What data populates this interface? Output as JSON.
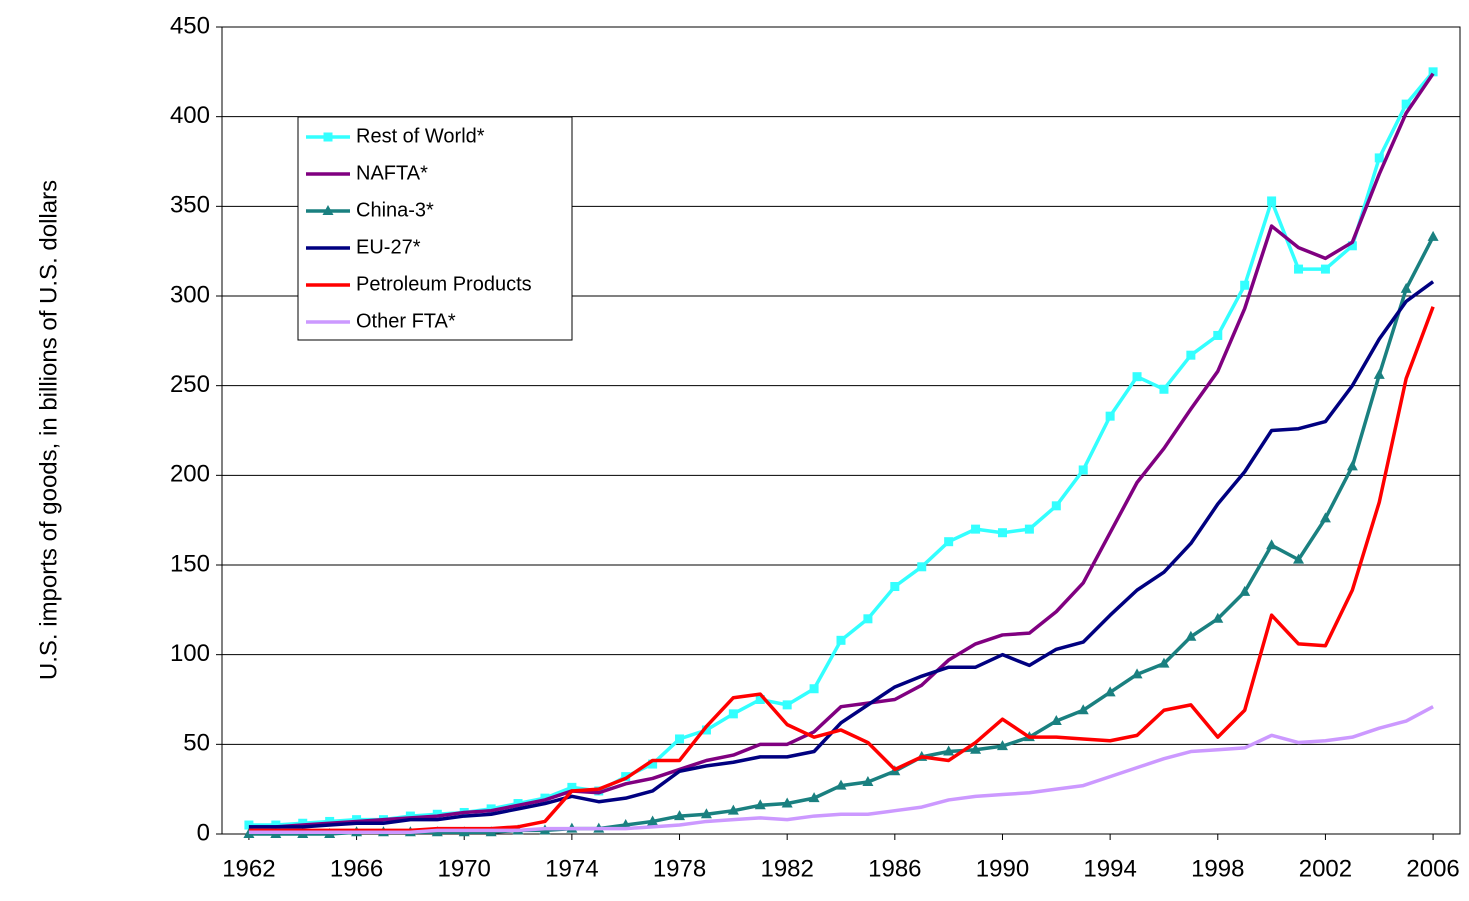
{
  "chart_data": {
    "type": "line",
    "y_label": "U.S. imports of goods, in billions of U.S. dollars",
    "x": [
      1962,
      1963,
      1964,
      1965,
      1966,
      1967,
      1968,
      1969,
      1970,
      1971,
      1972,
      1973,
      1974,
      1975,
      1976,
      1977,
      1978,
      1979,
      1980,
      1981,
      1982,
      1983,
      1984,
      1985,
      1986,
      1987,
      1988,
      1989,
      1990,
      1991,
      1992,
      1993,
      1994,
      1995,
      1996,
      1997,
      1998,
      1999,
      2000,
      2001,
      2002,
      2003,
      2004,
      2005,
      2006
    ],
    "series": [
      {
        "name": "Rest of World*",
        "color": "#33ffff",
        "marker": "square",
        "values": [
          5,
          5,
          6,
          7,
          8,
          8,
          10,
          11,
          12,
          14,
          17,
          20,
          26,
          24,
          32,
          39,
          53,
          58,
          67,
          75,
          72,
          81,
          108,
          120,
          138,
          149,
          163,
          170,
          168,
          170,
          183,
          203,
          233,
          255,
          248,
          267,
          278,
          306,
          353,
          315,
          315,
          328,
          377,
          407,
          425
        ]
      },
      {
        "name": "NAFTA*",
        "color": "#800080",
        "values": [
          4,
          4,
          5,
          6,
          7,
          8,
          9,
          10,
          12,
          13,
          16,
          19,
          24,
          23,
          28,
          31,
          36,
          41,
          44,
          50,
          50,
          57,
          71,
          73,
          75,
          83,
          97,
          106,
          111,
          112,
          124,
          140,
          168,
          196,
          215,
          237,
          258,
          293,
          339,
          327,
          321,
          330,
          368,
          402,
          424
        ]
      },
      {
        "name": "China-3*",
        "color": "#1a8080",
        "marker": "triangle",
        "values": [
          0,
          0,
          0,
          0,
          1,
          1,
          1,
          1,
          1,
          1,
          2,
          2,
          3,
          3,
          5,
          7,
          10,
          11,
          13,
          16,
          17,
          20,
          27,
          29,
          35,
          43,
          46,
          47,
          49,
          54,
          63,
          69,
          79,
          89,
          95,
          110,
          120,
          135,
          161,
          153,
          176,
          205,
          256,
          304,
          333
        ]
      },
      {
        "name": "EU-27*",
        "color": "#000080",
        "values": [
          4,
          4,
          4,
          5,
          6,
          6,
          8,
          8,
          10,
          11,
          14,
          17,
          21,
          18,
          20,
          24,
          35,
          38,
          40,
          43,
          43,
          46,
          62,
          72,
          82,
          88,
          93,
          93,
          100,
          94,
          103,
          107,
          122,
          136,
          146,
          162,
          184,
          202,
          225,
          226,
          230,
          250,
          276,
          297,
          308
        ]
      },
      {
        "name": "Petroleum Products",
        "color": "#ff0000",
        "values": [
          2,
          2,
          2,
          2,
          2,
          2,
          2,
          3,
          3,
          3,
          4,
          7,
          24,
          25,
          31,
          41,
          41,
          60,
          76,
          78,
          61,
          54,
          58,
          51,
          36,
          43,
          41,
          51,
          64,
          54,
          54,
          53,
          52,
          55,
          69,
          72,
          54,
          69,
          122,
          106,
          105,
          136,
          185,
          254,
          294
        ]
      },
      {
        "name": "Other FTA*",
        "color": "#cc99ff",
        "values": [
          1,
          1,
          1,
          1,
          1,
          1,
          1,
          2,
          2,
          2,
          2,
          3,
          3,
          3,
          3,
          4,
          5,
          7,
          8,
          9,
          8,
          10,
          11,
          11,
          13,
          15,
          19,
          21,
          22,
          23,
          25,
          27,
          32,
          37,
          42,
          46,
          47,
          48,
          55,
          51,
          52,
          54,
          59,
          63,
          71
        ]
      }
    ],
    "xlim": [
      1961,
      2007
    ],
    "xticks": [
      1962,
      1966,
      1970,
      1974,
      1978,
      1982,
      1986,
      1990,
      1994,
      1998,
      2002,
      2006
    ],
    "ylim": [
      0,
      450
    ],
    "yticks": [
      0,
      50,
      100,
      150,
      200,
      250,
      300,
      350,
      400,
      450
    ],
    "grid": true,
    "legend": "upper left"
  }
}
